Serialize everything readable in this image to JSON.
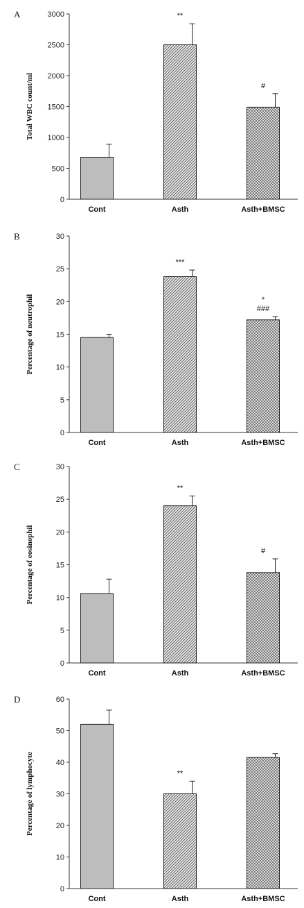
{
  "chart_data": [
    {
      "type": "bar",
      "panel_label": "A",
      "categories": [
        "Cont",
        "Asth",
        "Asth+BMSC"
      ],
      "values": [
        680,
        2500,
        1490
      ],
      "errors": [
        210,
        340,
        220
      ],
      "ylabel": "Total WBC count/ml",
      "ylim": [
        0,
        3000
      ],
      "yticks": [
        0,
        500,
        1000,
        1500,
        2000,
        2500,
        3000
      ],
      "annotations": [
        "",
        "**",
        "#"
      ]
    },
    {
      "type": "bar",
      "panel_label": "B",
      "categories": [
        "Cont",
        "Asth",
        "Asth+BMSC"
      ],
      "values": [
        14.5,
        23.8,
        17.2
      ],
      "errors": [
        0.5,
        1.0,
        0.5
      ],
      "ylabel": "Percentage of neutrophil",
      "ylim": [
        0,
        30
      ],
      "yticks": [
        0,
        5,
        10,
        15,
        20,
        25,
        30
      ],
      "annotations": [
        "",
        "***",
        "*\n###"
      ]
    },
    {
      "type": "bar",
      "panel_label": "C",
      "categories": [
        "Cont",
        "Asth",
        "Asth+BMSC"
      ],
      "values": [
        10.6,
        24.0,
        13.8
      ],
      "errors": [
        2.2,
        1.5,
        2.1
      ],
      "ylabel": "Percentage of eosinophil",
      "ylim": [
        0,
        30
      ],
      "yticks": [
        0,
        5,
        10,
        15,
        20,
        25,
        30
      ],
      "annotations": [
        "",
        "**",
        "#"
      ]
    },
    {
      "type": "bar",
      "panel_label": "D",
      "categories": [
        "Cont",
        "Asth",
        "Asth+BMSC"
      ],
      "values": [
        52,
        30,
        41.5
      ],
      "errors": [
        4.5,
        4.0,
        1.2
      ],
      "ylabel": "Percentage of lymphocyte",
      "ylim": [
        0,
        60
      ],
      "yticks": [
        0,
        10,
        20,
        30,
        40,
        50,
        60
      ],
      "annotations": [
        "",
        "**",
        ""
      ]
    }
  ]
}
